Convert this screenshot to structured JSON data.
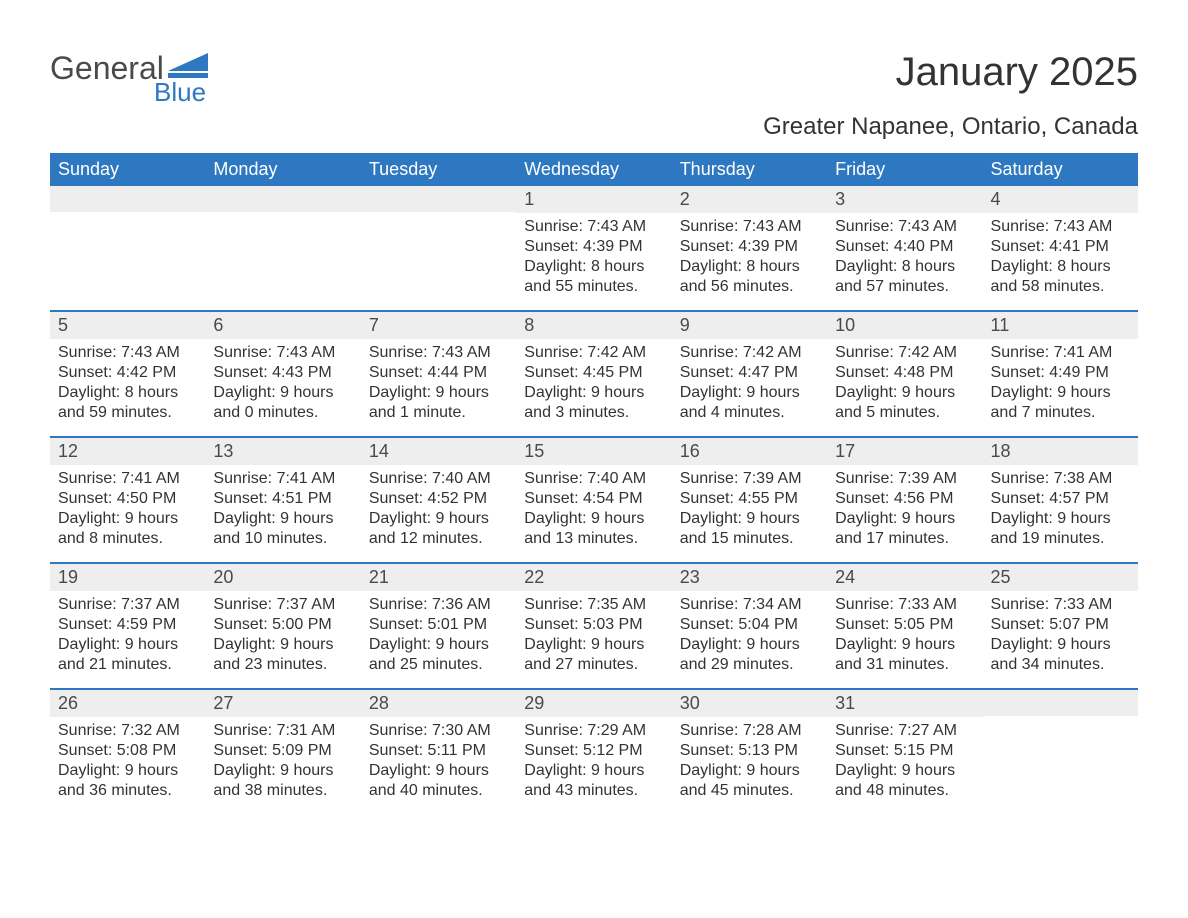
{
  "logo": {
    "text1": "General",
    "text2": "Blue"
  },
  "title": "January 2025",
  "location": "Greater Napanee, Ontario, Canada",
  "colors": {
    "header_bg": "#2e78c1",
    "header_text": "#ffffff",
    "daynum_bg": "#eeeeee",
    "text": "#333333",
    "page_bg": "#ffffff",
    "week_border": "#2e78c1"
  },
  "day_names": [
    "Sunday",
    "Monday",
    "Tuesday",
    "Wednesday",
    "Thursday",
    "Friday",
    "Saturday"
  ],
  "weeks": [
    [
      null,
      null,
      null,
      {
        "n": "1",
        "sunrise": "Sunrise: 7:43 AM",
        "sunset": "Sunset: 4:39 PM",
        "dl1": "Daylight: 8 hours",
        "dl2": "and 55 minutes."
      },
      {
        "n": "2",
        "sunrise": "Sunrise: 7:43 AM",
        "sunset": "Sunset: 4:39 PM",
        "dl1": "Daylight: 8 hours",
        "dl2": "and 56 minutes."
      },
      {
        "n": "3",
        "sunrise": "Sunrise: 7:43 AM",
        "sunset": "Sunset: 4:40 PM",
        "dl1": "Daylight: 8 hours",
        "dl2": "and 57 minutes."
      },
      {
        "n": "4",
        "sunrise": "Sunrise: 7:43 AM",
        "sunset": "Sunset: 4:41 PM",
        "dl1": "Daylight: 8 hours",
        "dl2": "and 58 minutes."
      }
    ],
    [
      {
        "n": "5",
        "sunrise": "Sunrise: 7:43 AM",
        "sunset": "Sunset: 4:42 PM",
        "dl1": "Daylight: 8 hours",
        "dl2": "and 59 minutes."
      },
      {
        "n": "6",
        "sunrise": "Sunrise: 7:43 AM",
        "sunset": "Sunset: 4:43 PM",
        "dl1": "Daylight: 9 hours",
        "dl2": "and 0 minutes."
      },
      {
        "n": "7",
        "sunrise": "Sunrise: 7:43 AM",
        "sunset": "Sunset: 4:44 PM",
        "dl1": "Daylight: 9 hours",
        "dl2": "and 1 minute."
      },
      {
        "n": "8",
        "sunrise": "Sunrise: 7:42 AM",
        "sunset": "Sunset: 4:45 PM",
        "dl1": "Daylight: 9 hours",
        "dl2": "and 3 minutes."
      },
      {
        "n": "9",
        "sunrise": "Sunrise: 7:42 AM",
        "sunset": "Sunset: 4:47 PM",
        "dl1": "Daylight: 9 hours",
        "dl2": "and 4 minutes."
      },
      {
        "n": "10",
        "sunrise": "Sunrise: 7:42 AM",
        "sunset": "Sunset: 4:48 PM",
        "dl1": "Daylight: 9 hours",
        "dl2": "and 5 minutes."
      },
      {
        "n": "11",
        "sunrise": "Sunrise: 7:41 AM",
        "sunset": "Sunset: 4:49 PM",
        "dl1": "Daylight: 9 hours",
        "dl2": "and 7 minutes."
      }
    ],
    [
      {
        "n": "12",
        "sunrise": "Sunrise: 7:41 AM",
        "sunset": "Sunset: 4:50 PM",
        "dl1": "Daylight: 9 hours",
        "dl2": "and 8 minutes."
      },
      {
        "n": "13",
        "sunrise": "Sunrise: 7:41 AM",
        "sunset": "Sunset: 4:51 PM",
        "dl1": "Daylight: 9 hours",
        "dl2": "and 10 minutes."
      },
      {
        "n": "14",
        "sunrise": "Sunrise: 7:40 AM",
        "sunset": "Sunset: 4:52 PM",
        "dl1": "Daylight: 9 hours",
        "dl2": "and 12 minutes."
      },
      {
        "n": "15",
        "sunrise": "Sunrise: 7:40 AM",
        "sunset": "Sunset: 4:54 PM",
        "dl1": "Daylight: 9 hours",
        "dl2": "and 13 minutes."
      },
      {
        "n": "16",
        "sunrise": "Sunrise: 7:39 AM",
        "sunset": "Sunset: 4:55 PM",
        "dl1": "Daylight: 9 hours",
        "dl2": "and 15 minutes."
      },
      {
        "n": "17",
        "sunrise": "Sunrise: 7:39 AM",
        "sunset": "Sunset: 4:56 PM",
        "dl1": "Daylight: 9 hours",
        "dl2": "and 17 minutes."
      },
      {
        "n": "18",
        "sunrise": "Sunrise: 7:38 AM",
        "sunset": "Sunset: 4:57 PM",
        "dl1": "Daylight: 9 hours",
        "dl2": "and 19 minutes."
      }
    ],
    [
      {
        "n": "19",
        "sunrise": "Sunrise: 7:37 AM",
        "sunset": "Sunset: 4:59 PM",
        "dl1": "Daylight: 9 hours",
        "dl2": "and 21 minutes."
      },
      {
        "n": "20",
        "sunrise": "Sunrise: 7:37 AM",
        "sunset": "Sunset: 5:00 PM",
        "dl1": "Daylight: 9 hours",
        "dl2": "and 23 minutes."
      },
      {
        "n": "21",
        "sunrise": "Sunrise: 7:36 AM",
        "sunset": "Sunset: 5:01 PM",
        "dl1": "Daylight: 9 hours",
        "dl2": "and 25 minutes."
      },
      {
        "n": "22",
        "sunrise": "Sunrise: 7:35 AM",
        "sunset": "Sunset: 5:03 PM",
        "dl1": "Daylight: 9 hours",
        "dl2": "and 27 minutes."
      },
      {
        "n": "23",
        "sunrise": "Sunrise: 7:34 AM",
        "sunset": "Sunset: 5:04 PM",
        "dl1": "Daylight: 9 hours",
        "dl2": "and 29 minutes."
      },
      {
        "n": "24",
        "sunrise": "Sunrise: 7:33 AM",
        "sunset": "Sunset: 5:05 PM",
        "dl1": "Daylight: 9 hours",
        "dl2": "and 31 minutes."
      },
      {
        "n": "25",
        "sunrise": "Sunrise: 7:33 AM",
        "sunset": "Sunset: 5:07 PM",
        "dl1": "Daylight: 9 hours",
        "dl2": "and 34 minutes."
      }
    ],
    [
      {
        "n": "26",
        "sunrise": "Sunrise: 7:32 AM",
        "sunset": "Sunset: 5:08 PM",
        "dl1": "Daylight: 9 hours",
        "dl2": "and 36 minutes."
      },
      {
        "n": "27",
        "sunrise": "Sunrise: 7:31 AM",
        "sunset": "Sunset: 5:09 PM",
        "dl1": "Daylight: 9 hours",
        "dl2": "and 38 minutes."
      },
      {
        "n": "28",
        "sunrise": "Sunrise: 7:30 AM",
        "sunset": "Sunset: 5:11 PM",
        "dl1": "Daylight: 9 hours",
        "dl2": "and 40 minutes."
      },
      {
        "n": "29",
        "sunrise": "Sunrise: 7:29 AM",
        "sunset": "Sunset: 5:12 PM",
        "dl1": "Daylight: 9 hours",
        "dl2": "and 43 minutes."
      },
      {
        "n": "30",
        "sunrise": "Sunrise: 7:28 AM",
        "sunset": "Sunset: 5:13 PM",
        "dl1": "Daylight: 9 hours",
        "dl2": "and 45 minutes."
      },
      {
        "n": "31",
        "sunrise": "Sunrise: 7:27 AM",
        "sunset": "Sunset: 5:15 PM",
        "dl1": "Daylight: 9 hours",
        "dl2": "and 48 minutes."
      },
      null
    ]
  ]
}
